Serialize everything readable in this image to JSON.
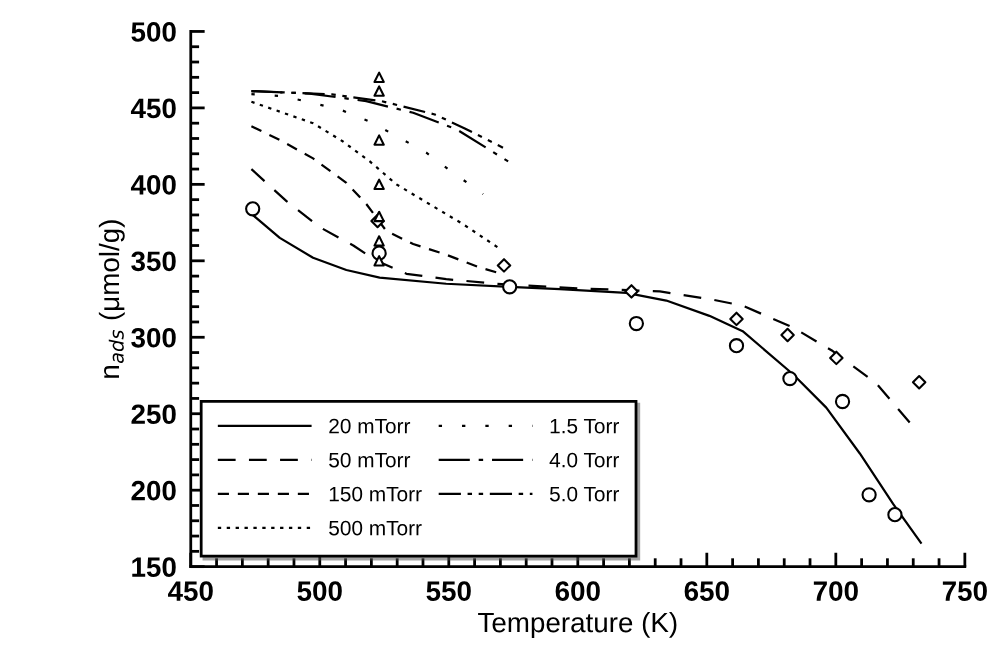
{
  "chart_data": {
    "type": "line",
    "xlabel": "Temperature (K)",
    "ylabel": "n$_{ads}$ (μmol/g)",
    "xlim": [
      450,
      750
    ],
    "ylim": [
      150,
      500
    ],
    "xticks": [
      450,
      500,
      550,
      600,
      650,
      700,
      750
    ],
    "yticks": [
      150,
      200,
      250,
      300,
      350,
      400,
      450,
      500
    ],
    "grid": false,
    "legend": "bottom left",
    "series": [
      {
        "name": "20 mTorr",
        "color": "#000000",
        "line_style": "solid",
        "x": [
          474,
          484.5,
          497.4,
          510.3,
          523.2,
          549,
          573.6,
          593,
          618.8,
          634.3,
          651,
          663.9,
          683.3,
          696.3,
          709.3,
          722.2,
          733.2
        ],
        "values": [
          380,
          365,
          352,
          344,
          339,
          335,
          333,
          331.5,
          329,
          324,
          314,
          304,
          276,
          254,
          224,
          191,
          165
        ]
      },
      {
        "name": "50 mTorr",
        "color": "#000000",
        "line_style": "dashed",
        "x": [
          473.5,
          487.1,
          500,
          513,
          522,
          533.6,
          549,
          568.5,
          600,
          631.8,
          651,
          664,
          683.3,
          698.8,
          715.6,
          729.8
        ],
        "values": [
          410,
          389,
          372,
          360,
          350,
          341.5,
          338,
          335,
          332,
          330,
          325,
          320.6,
          306.5,
          291,
          270,
          242
        ]
      },
      {
        "name": "150 mTorr",
        "color": "#000000",
        "line_style": "dashed",
        "x": [
          473.5,
          484.5,
          497.4,
          510.3,
          518.1,
          525.8,
          536.2,
          549,
          562,
          571.6
        ],
        "values": [
          438,
          429,
          417,
          401,
          387,
          369.5,
          361,
          354,
          345.6,
          341
        ]
      },
      {
        "name": "500 mTorr",
        "color": "#000000",
        "line_style": "dotted",
        "x": [
          473.5,
          497.4,
          509,
          519.4,
          529.7,
          542.6,
          555.5,
          569.7
        ],
        "values": [
          454,
          440,
          428,
          415,
          400,
          387,
          374,
          358
        ]
      },
      {
        "name": "1.5 Torr",
        "color": "#000000",
        "line_style": "dotted",
        "x": [
          473.5,
          485.8,
          507.8,
          519.4,
          529.7,
          541.3,
          551.6,
          563.3
        ],
        "values": [
          459,
          457.7,
          449,
          441,
          431.6,
          420.7,
          407.7,
          393.6
        ]
      },
      {
        "name": "4.0 Torr",
        "color": "#000000",
        "line_style": "dashed",
        "x": [
          473.5,
          496.1,
          518,
          536.2,
          553,
          573
        ],
        "values": [
          461,
          459.4,
          454.4,
          446.8,
          436,
          415
        ]
      },
      {
        "name": "5.0 Torr",
        "color": "#000000",
        "line_style": "dashed",
        "x": [
          473.5,
          504.7,
          524,
          544.6,
          556.2,
          571
        ],
        "values": [
          461,
          458.8,
          454.4,
          445.7,
          436.6,
          424
        ]
      },
      {
        "type": "scatter",
        "marker": "circle",
        "color": "#000000",
        "x": [
          474,
          523,
          573.6,
          622.7,
          661.5,
          682.2,
          702.6,
          712.9,
          722.9
        ],
        "values": [
          384,
          355,
          333,
          309,
          294.5,
          273,
          258,
          197,
          184
        ]
      },
      {
        "type": "scatter",
        "marker": "diamond",
        "color": "#000000",
        "x": [
          522.4,
          571.4,
          620.8,
          661.5,
          681.3,
          700.2,
          732.3
        ],
        "values": [
          376,
          347,
          330,
          312,
          301.5,
          286.5,
          270.6
        ]
      },
      {
        "type": "scatter",
        "marker": "triangle",
        "color": "#000000",
        "x": [
          523,
          523,
          523,
          523,
          523,
          523,
          523
        ],
        "values": [
          470,
          461,
          429,
          400,
          379,
          363,
          350
        ]
      }
    ]
  }
}
